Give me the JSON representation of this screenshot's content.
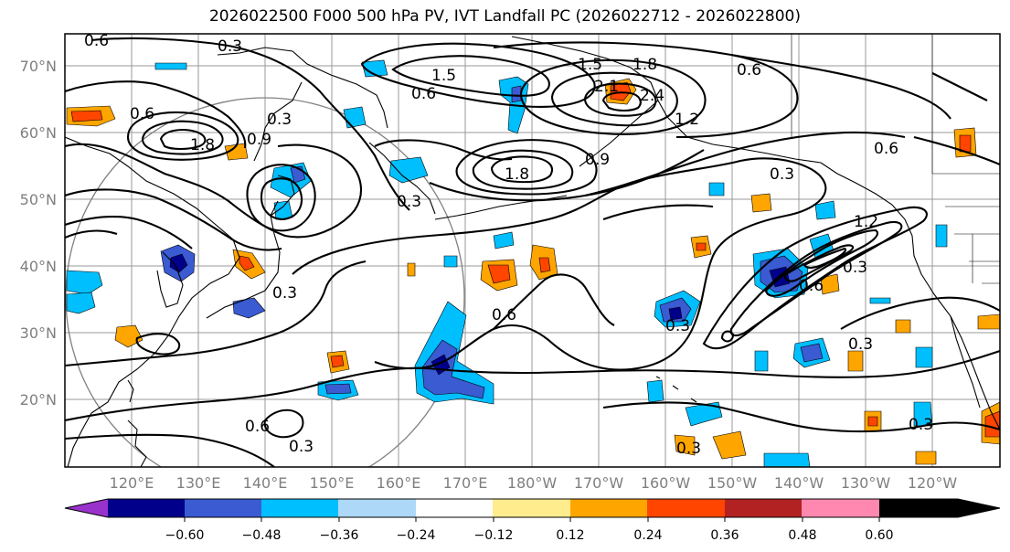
{
  "title": "2026022500 F000 500 hPa PV, IVT Landfall PC (2026022712 - 2026022800)",
  "lat_labels": [
    "70°N",
    "60°N",
    "50°N",
    "40°N",
    "30°N",
    "20°N"
  ],
  "lon_labels": [
    "120°E",
    "130°E",
    "140°E",
    "150°E",
    "160°E",
    "170°E",
    "180°W",
    "170°W",
    "160°W",
    "150°W",
    "140°W",
    "130°W",
    "120°W"
  ],
  "colorbar": {
    "colors": [
      "#9932cc",
      "#00008b",
      "#3a5bd2",
      "#00bfff",
      "#add8f7",
      "#ffffff",
      "#ffec8c",
      "#ffa500",
      "#ff4500",
      "#b22222",
      "#ff88b0"
    ],
    "ticks": [
      "−0.60",
      "−0.48",
      "−0.36",
      "−0.24",
      "−0.12",
      "0.12",
      "0.24",
      "0.36",
      "0.48",
      "0.60"
    ]
  },
  "contour_labels": [
    "0.6",
    "0.3",
    "1.5",
    "0.6",
    "1.5",
    "1.8",
    "2.1",
    "2.4",
    "1.2",
    "0.6",
    "0.6",
    "1.8",
    "0.9",
    "1.8",
    "0.9",
    "0.3",
    "0.3",
    "0.3",
    "0.3",
    "0.6",
    "0.6",
    "1.2",
    "0.6",
    "0.3",
    "0.3",
    "0.3",
    "0.6",
    "0.3",
    "0.3",
    "0.3"
  ]
}
